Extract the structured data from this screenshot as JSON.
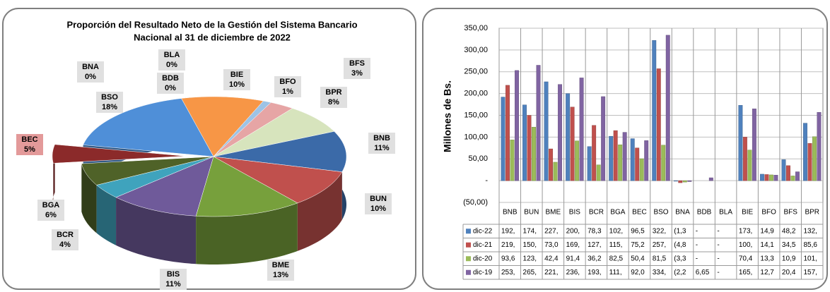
{
  "chart_data": [
    {
      "type": "pie",
      "title": [
        "Proporción del Resultado Neto de la Gestión del Sistema Bancario",
        "Nacional  al 31 de diciembre de 2022"
      ],
      "categories": [
        "BIE",
        "BFO",
        "BFS",
        "BPR",
        "BNB",
        "BUN",
        "BME",
        "BIS",
        "BCR",
        "BGA",
        "BEC",
        "BSO",
        "BNA",
        "BDB",
        "BLA"
      ],
      "values": [
        10,
        1,
        3,
        8,
        11,
        10,
        13,
        11,
        4,
        6,
        5,
        18,
        0,
        0,
        0
      ],
      "value_labels": [
        "10%",
        "1%",
        "3%",
        "8%",
        "11%",
        "10%",
        "13%",
        "11%",
        "4%",
        "6%",
        "5%",
        "18%",
        "0%",
        "0%",
        "0%"
      ],
      "colors": [
        "#f79646",
        "#9dc3e6",
        "#e6a5a5",
        "#d7e4bd",
        "#3b6aa8",
        "#c0504d",
        "#77a03c",
        "#6f5a9a",
        "#3fa3bd",
        "#4f6228",
        "#8b2a2a",
        "#4f8fd8",
        "#888888",
        "#888888",
        "#888888"
      ]
    },
    {
      "type": "bar",
      "ylabel": "Millones de Bs.",
      "categories": [
        "BNB",
        "BUN",
        "BME",
        "BIS",
        "BCR",
        "BGA",
        "BEC",
        "BSO",
        "BNA",
        "BDB",
        "BLA",
        "BIE",
        "BFO",
        "BFS",
        "BPR"
      ],
      "ylim": [
        -50,
        350
      ],
      "yticks": [
        {
          "value": -50,
          "label": "(50,00)"
        },
        {
          "value": 0,
          "label": "-"
        },
        {
          "value": 50,
          "label": "50,00"
        },
        {
          "value": 100,
          "label": "100,00"
        },
        {
          "value": 150,
          "label": "150,00"
        },
        {
          "value": 200,
          "label": "200,00"
        },
        {
          "value": 250,
          "label": "250,00"
        },
        {
          "value": 300,
          "label": "300,00"
        },
        {
          "value": 350,
          "label": "350,00"
        }
      ],
      "grid": true,
      "series": [
        {
          "name": "dic-22",
          "color": "#4f81bd",
          "values": [
            192,
            174,
            227,
            200,
            78.3,
            102,
            96.5,
            322,
            -1.3,
            0,
            0,
            173,
            14.9,
            48.2,
            132
          ],
          "value_labels": [
            "192,",
            "174,",
            "227,",
            "200,",
            "78,3",
            "102,",
            "96,5",
            "322,",
            "(1,3",
            "-",
            "-",
            "173,",
            "14,9",
            "48,2",
            "132,"
          ]
        },
        {
          "name": "dic-21",
          "color": "#c0504d",
          "values": [
            219,
            150,
            73.0,
            169,
            127,
            115,
            75.2,
            257,
            -4.8,
            0,
            0,
            100,
            14.1,
            34.5,
            85.6
          ],
          "value_labels": [
            "219,",
            "150,",
            "73,0",
            "169,",
            "127,",
            "115,",
            "75,2",
            "257,",
            "(4,8",
            "-",
            "-",
            "100,",
            "14,1",
            "34,5",
            "85,6"
          ]
        },
        {
          "name": "dic-20",
          "color": "#9bbb59",
          "values": [
            93.6,
            123,
            42.4,
            91.4,
            36.2,
            82.5,
            50.4,
            81.5,
            -3.3,
            0,
            0,
            70.4,
            13.3,
            10.9,
            101
          ],
          "value_labels": [
            "93,6",
            "123,",
            "42,4",
            "91,4",
            "36,2",
            "82,5",
            "50,4",
            "81,5",
            "(3,3",
            "-",
            "-",
            "70,4",
            "13,3",
            "10,9",
            "101,"
          ]
        },
        {
          "name": "dic-19",
          "color": "#8064a2",
          "values": [
            253,
            265,
            221,
            236,
            193,
            111,
            92.0,
            334,
            -2.2,
            6.65,
            0,
            165,
            12.7,
            20.4,
            157
          ],
          "value_labels": [
            "253,",
            "265,",
            "221,",
            "236,",
            "193,",
            "111,",
            "92,0",
            "334,",
            "(2,2",
            "6,65",
            "-",
            "165,",
            "12,7",
            "20,4",
            "157,"
          ]
        }
      ]
    }
  ]
}
